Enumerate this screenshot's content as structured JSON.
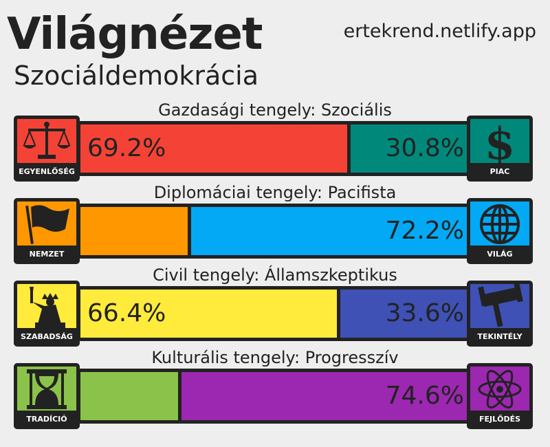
{
  "header": {
    "title": "Világnézet",
    "site": "ertekrend.netlify.app",
    "ideology": "Szociáldemokrácia"
  },
  "axes": [
    {
      "label": "Gazdasági tengely: Szociális",
      "left": {
        "name": "EGYENLŐSÉG",
        "icon": "scales-icon",
        "color": "#f44336",
        "value": 69.2,
        "value_text": "69.2%"
      },
      "right": {
        "name": "PIAC",
        "icon": "dollar-icon",
        "color": "#00897b",
        "value": 30.8,
        "value_text": "30.8%"
      }
    },
    {
      "label": "Diplomáciai tengely: Pacifista",
      "left": {
        "name": "NEMZET",
        "icon": "flag-icon",
        "color": "#ff9800",
        "value": 27.8,
        "value_text": ""
      },
      "right": {
        "name": "VILÁG",
        "icon": "globe-icon",
        "color": "#03a9f4",
        "value": 72.2,
        "value_text": "72.2%"
      }
    },
    {
      "label": "Civil tengely: Államszkeptikus",
      "left": {
        "name": "SZABADSÁG",
        "icon": "liberty-statue-icon",
        "color": "#ffeb3b",
        "value": 66.4,
        "value_text": "66.4%"
      },
      "right": {
        "name": "TEKINTÉLY",
        "icon": "gavel-icon",
        "color": "#3f51b5",
        "value": 33.6,
        "value_text": "33.6%"
      }
    },
    {
      "label": "Kulturális tengely: Progresszív",
      "left": {
        "name": "TRADÍCIÓ",
        "icon": "hourglass-icon",
        "color": "#8bc34a",
        "value": 25.4,
        "value_text": ""
      },
      "right": {
        "name": "FEJLŐDÉS",
        "icon": "atom-icon",
        "color": "#9c27b0",
        "value": 74.6,
        "value_text": "74.6%"
      }
    }
  ]
}
